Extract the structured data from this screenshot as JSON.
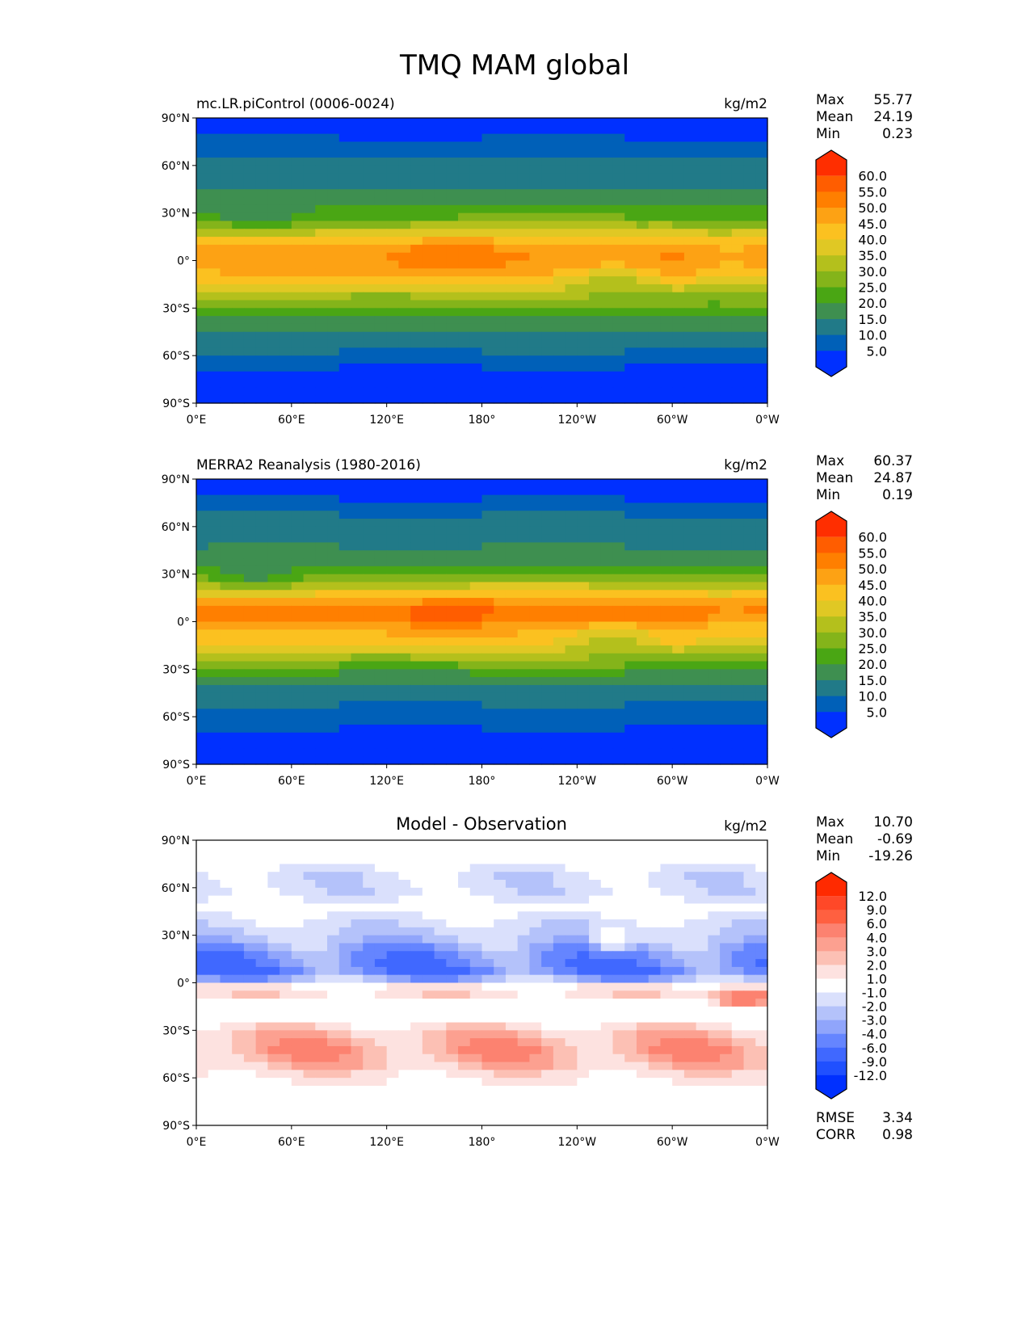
{
  "chart_data": {
    "type": "heatmap",
    "title": "TMQ MAM global",
    "x_ticks": [
      "0°E",
      "60°E",
      "120°E",
      "180°",
      "120°W",
      "60°W",
      "0°W"
    ],
    "y_ticks": [
      "90°N",
      "60°N",
      "30°N",
      "0°",
      "30°S",
      "60°S",
      "90°S"
    ],
    "lat_centers": [
      87.5,
      82.5,
      77.5,
      72.5,
      67.5,
      62.5,
      57.5,
      52.5,
      47.5,
      42.5,
      37.5,
      32.5,
      27.5,
      22.5,
      17.5,
      12.5,
      7.5,
      2.5,
      -2.5,
      -7.5,
      -12.5,
      -17.5,
      -22.5,
      -27.5,
      -32.5,
      -37.5,
      -42.5,
      -47.5,
      -52.5,
      -57.5,
      -62.5,
      -67.5,
      -72.5,
      -77.5,
      -82.5,
      -87.5
    ],
    "panels": [
      {
        "name": "model",
        "subtitle": "mc.LR.piControl (0006-0024)",
        "units": "kg/m2",
        "stats": {
          "max_label": "Max",
          "max": "55.77",
          "mean_label": "Mean",
          "mean": "24.19",
          "min_label": "Min",
          "min": "0.23"
        },
        "colorbar": "abs",
        "zonal_mean": [
          3,
          4,
          5,
          7,
          9,
          11,
          12,
          13,
          14,
          16,
          18,
          21,
          25,
          30,
          36,
          42,
          46,
          47,
          46,
          44,
          40,
          35,
          30,
          26,
          22,
          19,
          16,
          14,
          12,
          10,
          8,
          5,
          3,
          2,
          1,
          1
        ]
      },
      {
        "name": "observation",
        "subtitle": "MERRA2 Reanalysis (1980-2016)",
        "units": "kg/m2",
        "stats": {
          "max_label": "Max",
          "max": "60.37",
          "mean_label": "Mean",
          "mean": "24.87",
          "min_label": "Min",
          "min": "0.19"
        },
        "colorbar": "abs",
        "zonal_mean": [
          3,
          4,
          5,
          7,
          10,
          12,
          13,
          14,
          15,
          17,
          19,
          23,
          28,
          34,
          41,
          47,
          51,
          50,
          45,
          42,
          40,
          35,
          30,
          25,
          20,
          17,
          13,
          11,
          10,
          9,
          7,
          5,
          3,
          2,
          1,
          1
        ]
      },
      {
        "name": "difference",
        "subtitle": "Model - Observation",
        "units": "kg/m2",
        "stats": {
          "max_label": "Max",
          "max": "10.70",
          "mean_label": "Mean",
          "mean": "-0.69",
          "min_label": "Min",
          "min": "-19.26"
        },
        "extra_stats": {
          "rmse_label": "RMSE",
          "rmse": "3.34",
          "corr_label": "CORR",
          "corr": "0.98"
        },
        "colorbar": "diff",
        "zonal_mean": [
          0,
          0,
          -0.5,
          -1,
          -1.5,
          -1.5,
          -1.5,
          -1,
          -0.5,
          -1,
          -1.5,
          -2,
          -2.5,
          -3.5,
          -4.5,
          -5,
          -5.5,
          -3,
          1,
          1.5,
          0,
          -0.5,
          0.5,
          1.5,
          2.5,
          3,
          3.5,
          3,
          2.5,
          1.5,
          1,
          0.5,
          0,
          0,
          0,
          0
        ]
      }
    ],
    "colorbars": {
      "abs": {
        "levels": [
          5,
          10,
          15,
          20,
          25,
          30,
          35,
          40,
          45,
          50,
          55,
          60
        ],
        "labels": [
          "5.0",
          "10.0",
          "15.0",
          "20.0",
          "25.0",
          "30.0",
          "35.0",
          "40.0",
          "45.0",
          "50.0",
          "55.0",
          "60.0"
        ],
        "colors": [
          "#0030ff",
          "#0060b8",
          "#217a88",
          "#3e8f50",
          "#4aa614",
          "#84b41a",
          "#b4c01c",
          "#e0c824",
          "#fbc120",
          "#fda214",
          "#ff7f00",
          "#ff5d00",
          "#ff2e00"
        ]
      },
      "diff": {
        "levels": [
          -12,
          -9,
          -6,
          -4,
          -3,
          -2,
          -1,
          1,
          2,
          3,
          4,
          6,
          9,
          12
        ],
        "labels": [
          "-12.0",
          "-9.0",
          "-6.0",
          "-4.0",
          "-3.0",
          "-2.0",
          "-1.0",
          "1.0",
          "2.0",
          "3.0",
          "4.0",
          "6.0",
          "9.0",
          "12.0"
        ],
        "colors": [
          "#0030ff",
          "#2050ff",
          "#4068ff",
          "#6585ff",
          "#90a5fb",
          "#b4c2fa",
          "#dae0fc",
          "#ffffff",
          "#fde2e0",
          "#fcc0b4",
          "#fca090",
          "#fc8270",
          "#ff6040",
          "#ff4828",
          "#ff2a00"
        ]
      }
    }
  }
}
